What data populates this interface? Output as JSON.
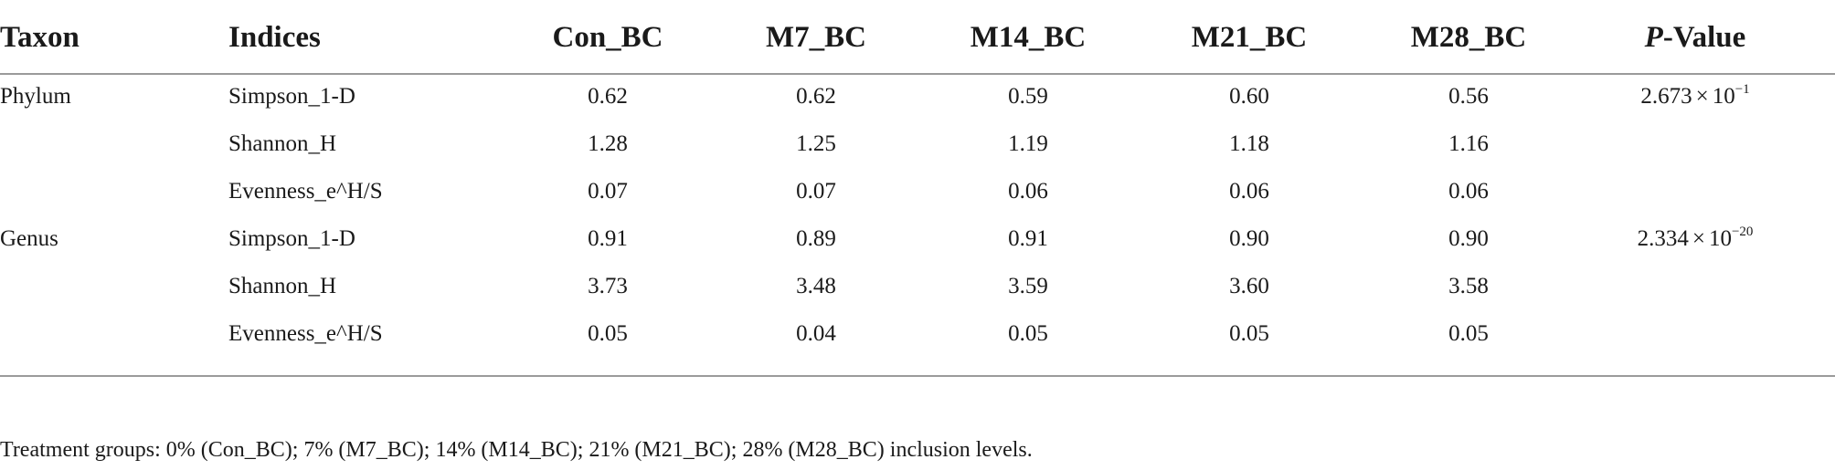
{
  "table": {
    "header": {
      "taxon": "Taxon",
      "indices": "Indices",
      "groups": [
        "Con_BC",
        "M7_BC",
        "M14_BC",
        "M21_BC",
        "M28_BC"
      ],
      "pvalue_italic": "P",
      "pvalue_rest": "-Value"
    },
    "rows": [
      {
        "taxon": "Phylum",
        "index": "Simpson_1-D",
        "values": [
          "0.62",
          "0.62",
          "0.59",
          "0.60",
          "0.56"
        ],
        "p_mantissa": "2.673",
        "p_times": "×",
        "p_base": "10",
        "p_exponent": "−1"
      },
      {
        "taxon": "",
        "index": "Shannon_H",
        "values": [
          "1.28",
          "1.25",
          "1.19",
          "1.18",
          "1.16"
        ]
      },
      {
        "taxon": "",
        "index": "Evenness_e^H/S",
        "values": [
          "0.07",
          "0.07",
          "0.06",
          "0.06",
          "0.06"
        ]
      },
      {
        "taxon": "Genus",
        "index": "Simpson_1-D",
        "values": [
          "0.91",
          "0.89",
          "0.91",
          "0.90",
          "0.90"
        ],
        "p_mantissa": "2.334",
        "p_times": "×",
        "p_base": "10",
        "p_exponent": "−20"
      },
      {
        "taxon": "",
        "index": "Shannon_H",
        "values": [
          "3.73",
          "3.48",
          "3.59",
          "3.60",
          "3.58"
        ]
      },
      {
        "taxon": "",
        "index": "Evenness_e^H/S",
        "values": [
          "0.05",
          "0.04",
          "0.05",
          "0.05",
          "0.05"
        ]
      }
    ]
  },
  "footnote": "Treatment groups: 0% (Con_BC); 7% (M7_BC); 14% (M14_BC); 21% (M21_BC); 28% (M28_BC) inclusion levels."
}
